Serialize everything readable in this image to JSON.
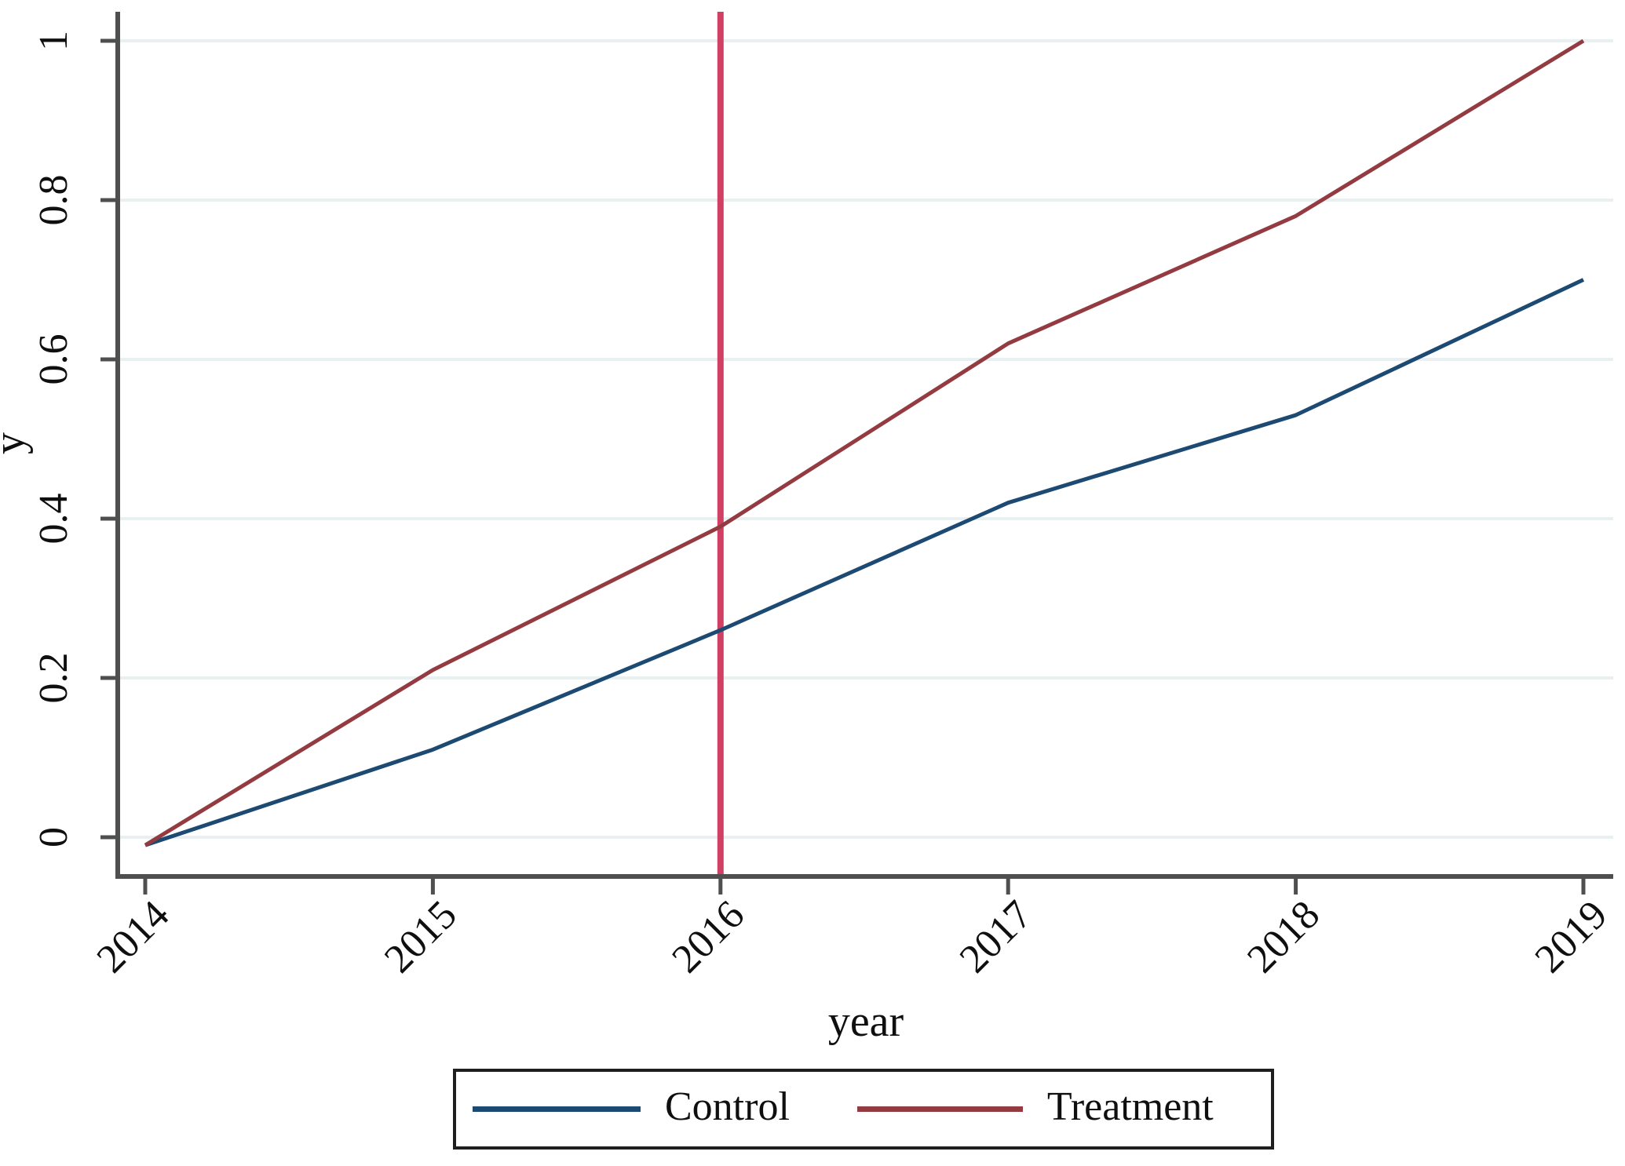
{
  "chart_data": {
    "type": "line",
    "x": [
      2014,
      2015,
      2016,
      2017,
      2018,
      2019
    ],
    "x_tick_labels": [
      "2014",
      "2015",
      "2016",
      "2017",
      "2018",
      "2019"
    ],
    "y_ticks": [
      0,
      0.2,
      0.4,
      0.6,
      0.8,
      1
    ],
    "y_tick_labels": [
      "0",
      "0.2",
      "0.4",
      "0.6",
      "0.8",
      "1"
    ],
    "xlabel": "year",
    "ylabel": "y",
    "xlim": [
      2014,
      2019
    ],
    "ylim": [
      -0.05,
      1.05
    ],
    "grid": "horizontal-only",
    "gridline_color": "#e9f0f2",
    "axis_color": "#4f4f4f",
    "series": [
      {
        "name": "Control",
        "color": "#1c4a72",
        "values": [
          -0.01,
          0.11,
          0.26,
          0.42,
          0.53,
          0.7
        ]
      },
      {
        "name": "Treatment",
        "color": "#943b42",
        "values": [
          -0.01,
          0.21,
          0.39,
          0.62,
          0.78,
          1.0
        ]
      }
    ],
    "reference_line": {
      "axis": "x",
      "value": 2016,
      "color": "#d04064"
    },
    "legend": {
      "position": "bottom",
      "entries": [
        "Control",
        "Treatment"
      ]
    }
  }
}
